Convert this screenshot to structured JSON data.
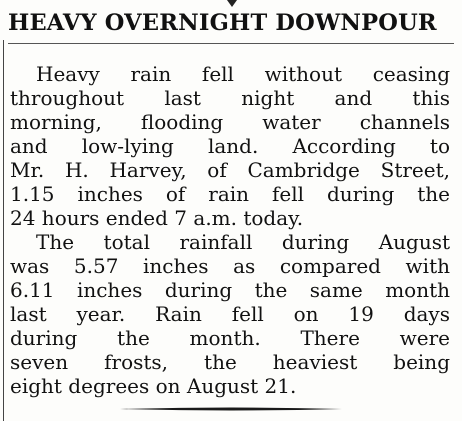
{
  "article": {
    "headline": "HEAVY OVERNIGHT DOWNPOUR",
    "paragraph1": [
      "Heavy rain fell without ceasing",
      "throughout last night and this",
      "morning, flooding water channels",
      "and low-lying land. According to",
      "Mr. H. Harvey, of Cambridge Street,",
      "1.15 inches of rain fell during the",
      "24 hours ended 7 a.m. today."
    ],
    "paragraph2": [
      "The total rainfall during August",
      "was 5.57 inches as compared with",
      "6.11 inches during the same month",
      "last year. Rain fell on 19 days",
      "during the month. There were",
      "seven frosts, the heaviest being",
      "eight degrees on August 21."
    ]
  },
  "colors": {
    "paper": "#fdfdfb",
    "ink": "#111111"
  }
}
